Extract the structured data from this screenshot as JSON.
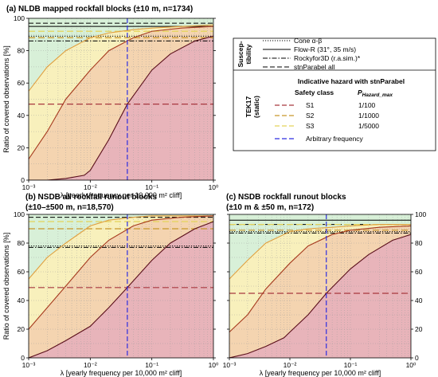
{
  "colors": {
    "s1": "#a8383f",
    "s2": "#c8962a",
    "s3": "#e3d35a",
    "curve_dark": "#5a0f1a",
    "curve_mid": "#a63a1e",
    "curve_light": "#e0a040",
    "curve_yellow": "#e8d848",
    "arbitrary": "#2d2de0",
    "region_red": "#e8b4ba",
    "region_orange": "#f4d4b0",
    "region_yellow": "#f8f0bc",
    "region_green": "#d8f0d8"
  },
  "legend": {
    "susceptibility_title": "Suscep-\ntibility",
    "cone": "Cone α-β",
    "flow": "Flow-R (31°, 35 m/s)",
    "rocky": "Rockyfor3D (r.a.sim.)*",
    "stn": "stnParabel all",
    "tek_title": "TEK17\n(static)",
    "hazard_header": "Indicative hazard with stnParabel",
    "safety_class_header": "Safety class",
    "p_header": "P",
    "p_header_sub": "Hazard_max",
    "rows": [
      {
        "label": "S1",
        "p": "1/100"
      },
      {
        "label": "S2",
        "p": "1/1000"
      },
      {
        "label": "S3",
        "p": "1/5000"
      }
    ],
    "arbitrary": "Arbitrary frequency"
  },
  "chart_data": [
    {
      "type": "line",
      "title": "(a) NLDB mapped rockfall blocks (±10 m, n=1734)",
      "xlabel": "λ [yearly frequency per 10,000 m² cliff]",
      "ylabel": "Ratio of covered observations [%]",
      "x_scale": "log",
      "xlim": [
        0.001,
        1
      ],
      "ylim": [
        0,
        100
      ],
      "x_tick_labels": [
        "10⁻³",
        "10⁻²",
        "10⁻¹",
        "10⁰"
      ],
      "y_tick_labels": [
        "0",
        "20",
        "40",
        "60",
        "80",
        "100"
      ],
      "arbitrary_frequency_x": 0.04,
      "hlines": {
        "cone": 89,
        "flow": 95,
        "rocky": 86,
        "stn": 97,
        "S1": 47,
        "S2": 88,
        "S3": 92
      },
      "series": [
        {
          "key": "S3",
          "x": [
            0.001,
            0.002,
            0.004,
            0.01,
            0.02,
            0.05,
            0.1,
            0.3,
            1
          ],
          "y": [
            55,
            70,
            80,
            88,
            91,
            93,
            94,
            95,
            96
          ]
        },
        {
          "key": "S2",
          "x": [
            0.001,
            0.002,
            0.004,
            0.01,
            0.02,
            0.05,
            0.1,
            0.3,
            1
          ],
          "y": [
            13,
            30,
            50,
            68,
            80,
            88,
            92,
            94,
            95
          ]
        },
        {
          "key": "S1",
          "x": [
            0.001,
            0.002,
            0.004,
            0.008,
            0.01,
            0.02,
            0.04,
            0.1,
            0.2,
            0.5,
            1
          ],
          "y": [
            0,
            0,
            1,
            3,
            6,
            25,
            47,
            68,
            78,
            86,
            89
          ]
        }
      ]
    },
    {
      "type": "line",
      "title": "(b) NSDB all rockfall runout blocks",
      "subtitle": "(±10–±500 m, n=18,570)",
      "xlabel": "λ [yearly frequency per 10,000 m² cliff]",
      "ylabel": "Ratio of covered observations [%]",
      "x_scale": "log",
      "xlim": [
        0.001,
        1
      ],
      "ylim": [
        0,
        100
      ],
      "x_tick_labels": [
        "10⁻³",
        "10⁻²",
        "10⁻¹",
        "10⁰"
      ],
      "y_tick_labels": [
        "0",
        "20",
        "40",
        "60",
        "80",
        "100"
      ],
      "arbitrary_frequency_x": 0.04,
      "hlines": {
        "cone": 78,
        "rocky": 77,
        "stn": 98,
        "S1": 49,
        "S2": 90,
        "S3": 95
      },
      "series": [
        {
          "key": "S3",
          "x": [
            0.001,
            0.002,
            0.004,
            0.01,
            0.02,
            0.05,
            0.1,
            0.3,
            1
          ],
          "y": [
            55,
            70,
            80,
            92,
            96,
            98,
            99,
            99,
            99
          ]
        },
        {
          "key": "S2",
          "x": [
            0.001,
            0.002,
            0.004,
            0.01,
            0.02,
            0.05,
            0.1,
            0.3,
            1
          ],
          "y": [
            20,
            35,
            50,
            70,
            82,
            92,
            96,
            98,
            99
          ]
        },
        {
          "key": "S1",
          "x": [
            0.001,
            0.002,
            0.004,
            0.01,
            0.02,
            0.04,
            0.1,
            0.2,
            0.5,
            1
          ],
          "y": [
            0,
            5,
            12,
            22,
            35,
            49,
            68,
            80,
            90,
            95
          ]
        }
      ]
    },
    {
      "type": "line",
      "title": "(c) NSDB rockfall runout blocks",
      "subtitle": "(±10 m & ±50 m, n=172)",
      "xlabel": "λ [yearly frequency per 10,000 m² cliff]",
      "ylabel": "",
      "x_scale": "log",
      "xlim": [
        0.001,
        1
      ],
      "ylim": [
        0,
        100
      ],
      "x_tick_labels": [
        "10⁻³",
        "10⁻²",
        "10⁻¹",
        "10⁰"
      ],
      "y_tick_labels": [
        "0",
        "20",
        "40",
        "60",
        "80",
        "100"
      ],
      "arbitrary_frequency_x": 0.04,
      "hlines": {
        "cone": 88,
        "flow": 96,
        "rocky": 87,
        "stn": 93,
        "S1": 45,
        "S2": 89,
        "S3": 93
      },
      "series": [
        {
          "key": "S3",
          "x": [
            0.001,
            0.002,
            0.004,
            0.01,
            0.02,
            0.05,
            0.1,
            0.3,
            1
          ],
          "y": [
            55,
            68,
            80,
            88,
            90,
            91,
            92,
            93,
            93
          ]
        },
        {
          "key": "S2",
          "x": [
            0.001,
            0.002,
            0.004,
            0.01,
            0.02,
            0.05,
            0.1,
            0.3,
            1
          ],
          "y": [
            18,
            30,
            48,
            66,
            78,
            86,
            89,
            91,
            92
          ]
        },
        {
          "key": "S1",
          "x": [
            0.001,
            0.002,
            0.004,
            0.008,
            0.01,
            0.02,
            0.04,
            0.1,
            0.2,
            0.5,
            1
          ],
          "y": [
            0,
            3,
            8,
            14,
            18,
            30,
            45,
            62,
            72,
            82,
            86
          ]
        }
      ]
    }
  ]
}
